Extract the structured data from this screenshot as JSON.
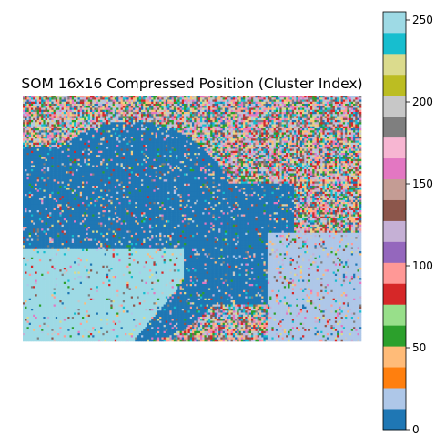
{
  "chart_data": {
    "type": "heatmap",
    "title": "SOM 16x16 Compressed Position (Cluster Index)",
    "xlabel": "",
    "ylabel": "",
    "axes_visible": false,
    "value_range": [
      0,
      255
    ],
    "colormap": "tab20",
    "colorbar": {
      "position": "right",
      "ticks": [
        0,
        50,
        100,
        150,
        200,
        250
      ],
      "tick_labels": [
        "0",
        "50",
        "100",
        "150",
        "200",
        "250"
      ],
      "colors": [
        "#1f77b4",
        "#aec7e8",
        "#ff7f0e",
        "#ffbb78",
        "#2ca02c",
        "#98df8a",
        "#d62728",
        "#ff9896",
        "#9467bd",
        "#c5b0d5",
        "#8c564b",
        "#c49c94",
        "#e377c2",
        "#f7b6d2",
        "#7f7f7f",
        "#c7c7c7",
        "#bcbd22",
        "#dbdb8d",
        "#17becf",
        "#9edae5"
      ]
    },
    "grid": false,
    "image_shape": [
      120,
      166
    ],
    "regions_description_value_dominant": {
      "water_body": 5,
      "lower_left_field": 250,
      "right_fields": 20,
      "textured_areas_mixed": [
        5,
        20,
        40,
        60,
        80,
        100,
        120,
        140,
        160,
        180,
        200,
        220,
        240
      ]
    }
  }
}
